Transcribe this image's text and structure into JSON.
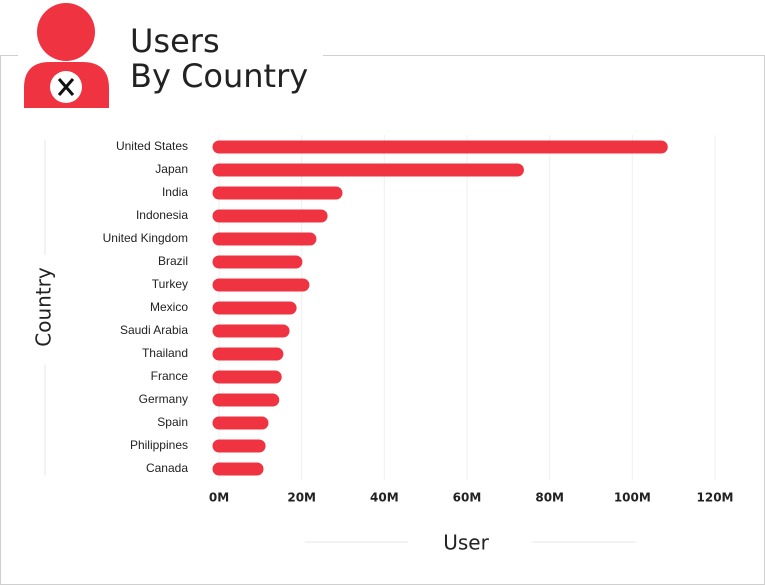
{
  "chart_data": {
    "type": "bar",
    "orientation": "horizontal",
    "title": [
      "Users",
      "By Country"
    ],
    "x_label": "User",
    "y_label": "Country",
    "categories": [
      "United States",
      "Japan",
      "India",
      "Indonesia",
      "United Kingdom",
      "Brazil",
      "Turkey",
      "Mexico",
      "Saudi Arabia",
      "Thailand",
      "France",
      "Germany",
      "Spain",
      "Philippines",
      "Canada"
    ],
    "values": [
      107,
      72.2,
      28.3,
      24.7,
      22,
      18.6,
      20.3,
      17.2,
      15.5,
      14,
      13.6,
      13,
      10.4,
      9.7,
      9.2
    ],
    "color": "#ef3340",
    "xlim": [
      0,
      120
    ],
    "xticks": [
      {
        "value": 0,
        "label": "0M"
      },
      {
        "value": 20,
        "label": "20M"
      },
      {
        "value": 40,
        "label": "40M"
      },
      {
        "value": 60,
        "label": "60M"
      },
      {
        "value": 80,
        "label": "80M"
      },
      {
        "value": 100,
        "label": "100M"
      },
      {
        "value": 120,
        "label": "120M"
      }
    ],
    "grid": true
  }
}
